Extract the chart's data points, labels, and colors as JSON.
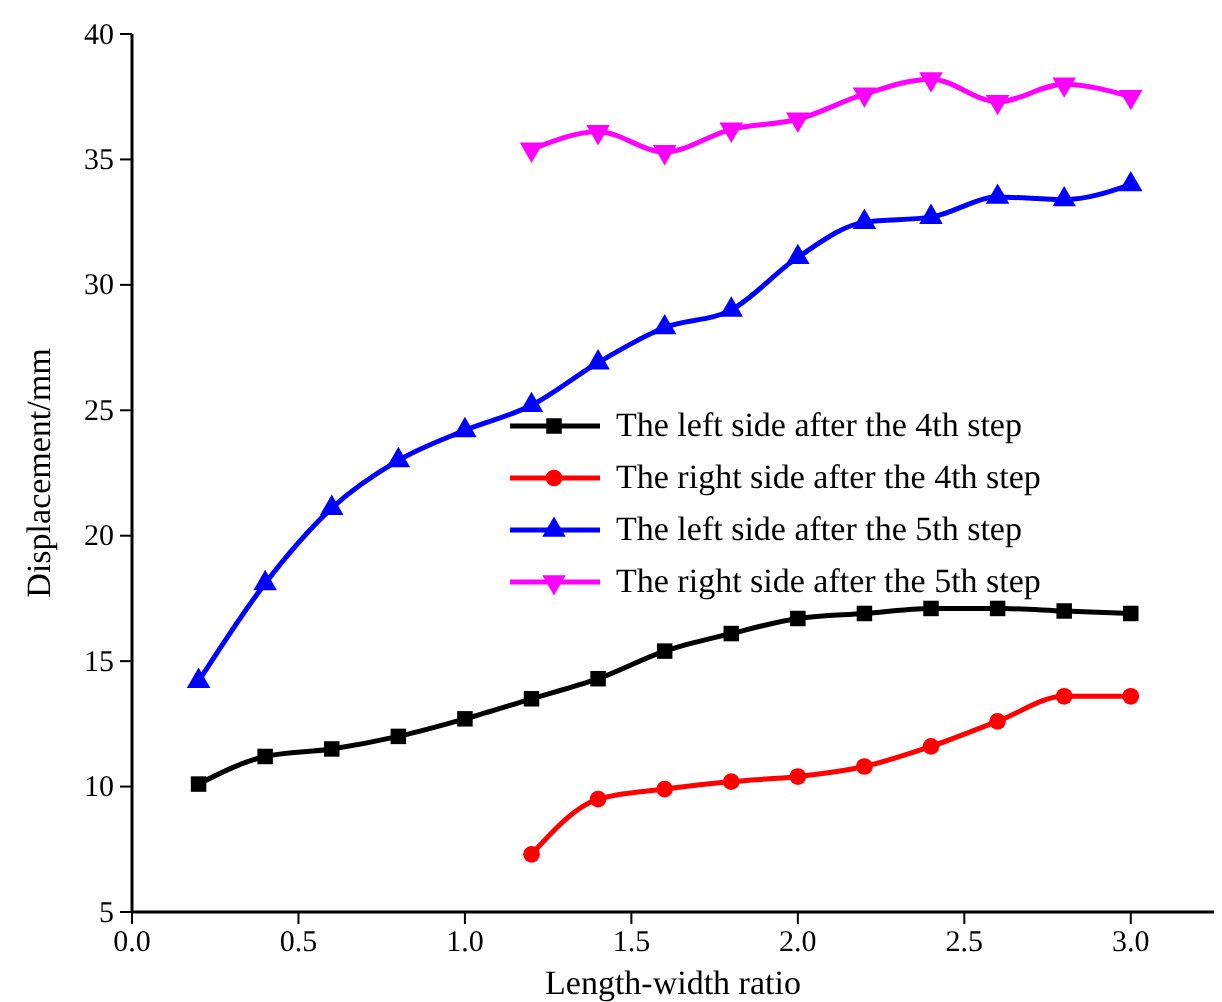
{
  "chart_data": {
    "type": "line",
    "xlabel": "Length-width ratio",
    "ylabel": "Displacement/mm",
    "xlim": [
      0,
      3.25
    ],
    "xticks": [
      {
        "value": 0,
        "label": "0.0"
      },
      0.5,
      {
        "value": 1,
        "label": "1.0"
      },
      1.5,
      {
        "value": 2,
        "label": "2.0"
      },
      2.5,
      {
        "value": 3,
        "label": "3.0"
      }
    ],
    "ylim": [
      5,
      40
    ],
    "yticks": [
      5,
      10,
      15,
      20,
      25,
      30,
      35,
      40
    ],
    "grid": false,
    "legend": "right",
    "series": [
      {
        "name": "The left side after the 4th step",
        "color": "#000000",
        "marker": "square",
        "x": [
          0.2,
          0.4,
          0.6,
          0.8,
          1.0,
          1.2,
          1.4,
          1.6,
          1.8,
          2.0,
          2.2,
          2.4,
          2.6,
          2.8,
          3.0
        ],
        "values": [
          10.1,
          11.2,
          11.5,
          12.0,
          12.7,
          13.5,
          14.3,
          15.4,
          16.1,
          16.7,
          16.9,
          17.1,
          17.1,
          17.0,
          16.9
        ]
      },
      {
        "name": "The right side after the 4th step",
        "color": "#ff0000",
        "marker": "circle",
        "x": [
          1.2,
          1.4,
          1.6,
          1.8,
          2.0,
          2.2,
          2.4,
          2.6,
          2.8,
          3.0
        ],
        "values": [
          7.3,
          9.5,
          9.9,
          10.2,
          10.4,
          10.8,
          11.6,
          12.6,
          13.6,
          13.6
        ]
      },
      {
        "name": "The left side after the 5th step",
        "color": "#0000ff",
        "marker": "triangle",
        "x": [
          0.2,
          0.4,
          0.6,
          0.8,
          1.0,
          1.2,
          1.4,
          1.6,
          1.8,
          2.0,
          2.2,
          2.4,
          2.6,
          2.8,
          3.0
        ],
        "values": [
          14.2,
          18.1,
          21.1,
          23.0,
          24.2,
          25.2,
          26.9,
          28.3,
          29.0,
          31.1,
          32.5,
          32.7,
          33.5,
          33.4,
          34.0
        ]
      },
      {
        "name": "The right side after the 5th step",
        "color": "#ff00ff",
        "marker": "triangle-down",
        "x": [
          1.2,
          1.4,
          1.6,
          1.8,
          2.0,
          2.2,
          2.4,
          2.6,
          2.8,
          3.0
        ],
        "values": [
          35.4,
          36.1,
          35.3,
          36.2,
          36.6,
          37.6,
          38.2,
          37.3,
          38.0,
          37.5
        ]
      }
    ]
  }
}
